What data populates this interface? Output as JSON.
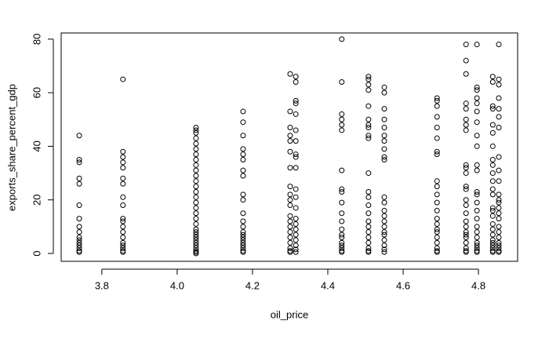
{
  "chart_data": {
    "type": "scatter",
    "x_label": "oil_price",
    "y_label": "exports_share_percent_gdp",
    "xlim": [
      3.692,
      4.904
    ],
    "ylim": [
      -2.93,
      82.3
    ],
    "xticks": [
      3.8,
      {
        "value": 4,
        "label": "4.0"
      },
      4.2,
      4.4,
      4.6,
      4.8
    ],
    "yticks": [
      0,
      20,
      40,
      60,
      80
    ],
    "color": "#000000",
    "points": [
      [
        3.74,
        44
      ],
      [
        3.74,
        35
      ],
      [
        3.74,
        34
      ],
      [
        3.74,
        28
      ],
      [
        3.74,
        26
      ],
      [
        3.74,
        18
      ],
      [
        3.74,
        13
      ],
      [
        3.74,
        10
      ],
      [
        3.74,
        8
      ],
      [
        3.74,
        6
      ],
      [
        3.74,
        5
      ],
      [
        3.74,
        4
      ],
      [
        3.74,
        3
      ],
      [
        3.74,
        2
      ],
      [
        3.74,
        1
      ],
      [
        3.74,
        0.5
      ],
      [
        3.856,
        65
      ],
      [
        3.856,
        38
      ],
      [
        3.856,
        36
      ],
      [
        3.856,
        34
      ],
      [
        3.856,
        32
      ],
      [
        3.856,
        28
      ],
      [
        3.856,
        26
      ],
      [
        3.856,
        21
      ],
      [
        3.856,
        18
      ],
      [
        3.856,
        13
      ],
      [
        3.856,
        12
      ],
      [
        3.856,
        10
      ],
      [
        3.856,
        8
      ],
      [
        3.856,
        6
      ],
      [
        3.856,
        4
      ],
      [
        3.856,
        3
      ],
      [
        3.856,
        2
      ],
      [
        3.856,
        1
      ],
      [
        3.856,
        0.5
      ],
      [
        4.05,
        47
      ],
      [
        4.05,
        46
      ],
      [
        4.05,
        45
      ],
      [
        4.05,
        43
      ],
      [
        4.05,
        41
      ],
      [
        4.05,
        39
      ],
      [
        4.05,
        37
      ],
      [
        4.05,
        35
      ],
      [
        4.05,
        33
      ],
      [
        4.05,
        31
      ],
      [
        4.05,
        29
      ],
      [
        4.05,
        27
      ],
      [
        4.05,
        25
      ],
      [
        4.05,
        23
      ],
      [
        4.05,
        21
      ],
      [
        4.05,
        19
      ],
      [
        4.05,
        17
      ],
      [
        4.05,
        15
      ],
      [
        4.05,
        13
      ],
      [
        4.05,
        11
      ],
      [
        4.05,
        9
      ],
      [
        4.05,
        8
      ],
      [
        4.05,
        7
      ],
      [
        4.05,
        6
      ],
      [
        4.05,
        5
      ],
      [
        4.05,
        4
      ],
      [
        4.05,
        3
      ],
      [
        4.05,
        2
      ],
      [
        4.05,
        1
      ],
      [
        4.05,
        0.5
      ],
      [
        4.05,
        0
      ],
      [
        4.175,
        53
      ],
      [
        4.175,
        49
      ],
      [
        4.175,
        44
      ],
      [
        4.175,
        39
      ],
      [
        4.175,
        37
      ],
      [
        4.175,
        35
      ],
      [
        4.175,
        31
      ],
      [
        4.175,
        29
      ],
      [
        4.175,
        22
      ],
      [
        4.175,
        20
      ],
      [
        4.175,
        15
      ],
      [
        4.175,
        12
      ],
      [
        4.175,
        10
      ],
      [
        4.175,
        8
      ],
      [
        4.175,
        7
      ],
      [
        4.175,
        6
      ],
      [
        4.175,
        5
      ],
      [
        4.175,
        4
      ],
      [
        4.175,
        3
      ],
      [
        4.175,
        2
      ],
      [
        4.175,
        1
      ],
      [
        4.175,
        0.5
      ],
      [
        4.3,
        67
      ],
      [
        4.3,
        53
      ],
      [
        4.3,
        47
      ],
      [
        4.3,
        44
      ],
      [
        4.3,
        42
      ],
      [
        4.3,
        38
      ],
      [
        4.3,
        32
      ],
      [
        4.3,
        25
      ],
      [
        4.3,
        22
      ],
      [
        4.3,
        20
      ],
      [
        4.3,
        18
      ],
      [
        4.3,
        14
      ],
      [
        4.3,
        12
      ],
      [
        4.3,
        10
      ],
      [
        4.3,
        8
      ],
      [
        4.3,
        6
      ],
      [
        4.3,
        4
      ],
      [
        4.3,
        2
      ],
      [
        4.3,
        1
      ],
      [
        4.3,
        0.5
      ],
      [
        4.315,
        66
      ],
      [
        4.315,
        64
      ],
      [
        4.315,
        57
      ],
      [
        4.315,
        56
      ],
      [
        4.315,
        52
      ],
      [
        4.315,
        46
      ],
      [
        4.315,
        42
      ],
      [
        4.315,
        37
      ],
      [
        4.315,
        36
      ],
      [
        4.315,
        32
      ],
      [
        4.315,
        24
      ],
      [
        4.315,
        21
      ],
      [
        4.315,
        17
      ],
      [
        4.315,
        13
      ],
      [
        4.315,
        11
      ],
      [
        4.315,
        9
      ],
      [
        4.315,
        7
      ],
      [
        4.315,
        5
      ],
      [
        4.315,
        3
      ],
      [
        4.315,
        1.5
      ],
      [
        4.315,
        0.5
      ],
      [
        4.437,
        80
      ],
      [
        4.437,
        64
      ],
      [
        4.437,
        52
      ],
      [
        4.437,
        50
      ],
      [
        4.437,
        48
      ],
      [
        4.437,
        46
      ],
      [
        4.437,
        31
      ],
      [
        4.437,
        24
      ],
      [
        4.437,
        23
      ],
      [
        4.437,
        19
      ],
      [
        4.437,
        15
      ],
      [
        4.437,
        12
      ],
      [
        4.437,
        9
      ],
      [
        4.437,
        7
      ],
      [
        4.437,
        6
      ],
      [
        4.437,
        4
      ],
      [
        4.437,
        3
      ],
      [
        4.437,
        2
      ],
      [
        4.437,
        1
      ],
      [
        4.437,
        0.5
      ],
      [
        4.508,
        66
      ],
      [
        4.508,
        65
      ],
      [
        4.508,
        63
      ],
      [
        4.508,
        61
      ],
      [
        4.508,
        55
      ],
      [
        4.508,
        50
      ],
      [
        4.508,
        48
      ],
      [
        4.508,
        47
      ],
      [
        4.508,
        44
      ],
      [
        4.508,
        43
      ],
      [
        4.508,
        30
      ],
      [
        4.508,
        23
      ],
      [
        4.508,
        21
      ],
      [
        4.508,
        18
      ],
      [
        4.508,
        15
      ],
      [
        4.508,
        12
      ],
      [
        4.508,
        10
      ],
      [
        4.508,
        8
      ],
      [
        4.508,
        6
      ],
      [
        4.508,
        4
      ],
      [
        4.508,
        2
      ],
      [
        4.508,
        1
      ],
      [
        4.508,
        0.5
      ],
      [
        4.55,
        62
      ],
      [
        4.55,
        60
      ],
      [
        4.55,
        54
      ],
      [
        4.55,
        50
      ],
      [
        4.55,
        47
      ],
      [
        4.55,
        44
      ],
      [
        4.55,
        42
      ],
      [
        4.55,
        39
      ],
      [
        4.55,
        36
      ],
      [
        4.55,
        35
      ],
      [
        4.55,
        21
      ],
      [
        4.55,
        19
      ],
      [
        4.55,
        16
      ],
      [
        4.55,
        14
      ],
      [
        4.55,
        12
      ],
      [
        4.55,
        10
      ],
      [
        4.55,
        8
      ],
      [
        4.55,
        7
      ],
      [
        4.55,
        5
      ],
      [
        4.55,
        3
      ],
      [
        4.55,
        1.5
      ],
      [
        4.55,
        0.5
      ],
      [
        4.69,
        58
      ],
      [
        4.69,
        57
      ],
      [
        4.69,
        55
      ],
      [
        4.69,
        51
      ],
      [
        4.69,
        47
      ],
      [
        4.69,
        43
      ],
      [
        4.69,
        38
      ],
      [
        4.69,
        37
      ],
      [
        4.69,
        27
      ],
      [
        4.69,
        25
      ],
      [
        4.69,
        22
      ],
      [
        4.69,
        19
      ],
      [
        4.69,
        16
      ],
      [
        4.69,
        13
      ],
      [
        4.69,
        11
      ],
      [
        4.69,
        9
      ],
      [
        4.69,
        8
      ],
      [
        4.69,
        6
      ],
      [
        4.69,
        4
      ],
      [
        4.69,
        2
      ],
      [
        4.69,
        1
      ],
      [
        4.69,
        0.5
      ],
      [
        4.767,
        78
      ],
      [
        4.767,
        72
      ],
      [
        4.767,
        67
      ],
      [
        4.767,
        56
      ],
      [
        4.767,
        54
      ],
      [
        4.767,
        50
      ],
      [
        4.767,
        48
      ],
      [
        4.767,
        46
      ],
      [
        4.767,
        33
      ],
      [
        4.767,
        32
      ],
      [
        4.767,
        30
      ],
      [
        4.767,
        25
      ],
      [
        4.767,
        24
      ],
      [
        4.767,
        20
      ],
      [
        4.767,
        18
      ],
      [
        4.767,
        15
      ],
      [
        4.767,
        12
      ],
      [
        4.767,
        10
      ],
      [
        4.767,
        8
      ],
      [
        4.767,
        7
      ],
      [
        4.767,
        6
      ],
      [
        4.767,
        4
      ],
      [
        4.767,
        2
      ],
      [
        4.767,
        1
      ],
      [
        4.767,
        0.5
      ],
      [
        4.796,
        78
      ],
      [
        4.796,
        62
      ],
      [
        4.796,
        61
      ],
      [
        4.796,
        58
      ],
      [
        4.796,
        56
      ],
      [
        4.796,
        53
      ],
      [
        4.796,
        49
      ],
      [
        4.796,
        44
      ],
      [
        4.796,
        40
      ],
      [
        4.796,
        33
      ],
      [
        4.796,
        31
      ],
      [
        4.796,
        23
      ],
      [
        4.796,
        22
      ],
      [
        4.796,
        19
      ],
      [
        4.796,
        16
      ],
      [
        4.796,
        13
      ],
      [
        4.796,
        10
      ],
      [
        4.796,
        8
      ],
      [
        4.796,
        6
      ],
      [
        4.796,
        4
      ],
      [
        4.796,
        3
      ],
      [
        4.796,
        2
      ],
      [
        4.796,
        1
      ],
      [
        4.796,
        0.5
      ],
      [
        4.838,
        66
      ],
      [
        4.838,
        64
      ],
      [
        4.838,
        55
      ],
      [
        4.838,
        54
      ],
      [
        4.838,
        48
      ],
      [
        4.838,
        45
      ],
      [
        4.838,
        40
      ],
      [
        4.838,
        35
      ],
      [
        4.838,
        33
      ],
      [
        4.838,
        30
      ],
      [
        4.838,
        27
      ],
      [
        4.838,
        24
      ],
      [
        4.838,
        22
      ],
      [
        4.838,
        17
      ],
      [
        4.838,
        16
      ],
      [
        4.838,
        14
      ],
      [
        4.838,
        11
      ],
      [
        4.838,
        9
      ],
      [
        4.838,
        7
      ],
      [
        4.838,
        5
      ],
      [
        4.838,
        4
      ],
      [
        4.838,
        3
      ],
      [
        4.838,
        2
      ],
      [
        4.838,
        1
      ],
      [
        4.838,
        0.5
      ],
      [
        4.854,
        78
      ],
      [
        4.854,
        65
      ],
      [
        4.854,
        63
      ],
      [
        4.854,
        58
      ],
      [
        4.854,
        54
      ],
      [
        4.854,
        51
      ],
      [
        4.854,
        47
      ],
      [
        4.854,
        36
      ],
      [
        4.854,
        31
      ],
      [
        4.854,
        27
      ],
      [
        4.854,
        22
      ],
      [
        4.854,
        20
      ],
      [
        4.854,
        19
      ],
      [
        4.854,
        17
      ],
      [
        4.854,
        15
      ],
      [
        4.854,
        13
      ],
      [
        4.854,
        10
      ],
      [
        4.854,
        8
      ],
      [
        4.854,
        6
      ],
      [
        4.854,
        4
      ],
      [
        4.854,
        3
      ],
      [
        4.854,
        2
      ],
      [
        4.854,
        1
      ],
      [
        4.854,
        0.5
      ]
    ]
  }
}
